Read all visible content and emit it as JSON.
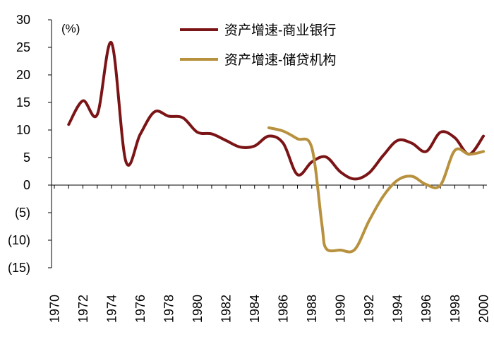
{
  "chart_data": {
    "type": "line",
    "title": "",
    "xlabel": "",
    "ylabel": "",
    "unit_label": "(%)",
    "xlim": [
      1970,
      2000
    ],
    "ylim": [
      -15,
      30
    ],
    "x_ticks": [
      1970,
      1972,
      1974,
      1976,
      1978,
      1980,
      1982,
      1984,
      1986,
      1988,
      1990,
      1992,
      1994,
      1996,
      1998,
      2000
    ],
    "x_tick_labels": [
      "1970",
      "1972",
      "1974",
      "1976",
      "1978",
      "1980",
      "1982",
      "1984",
      "1986",
      "1988",
      "1990",
      "1992",
      "1994",
      "1996",
      "1998",
      "2000"
    ],
    "y_ticks": [
      30,
      25,
      20,
      15,
      10,
      5,
      0,
      -5,
      -10,
      -15
    ],
    "y_tick_labels": [
      "30",
      "25",
      "20",
      "15",
      "10",
      "5",
      "0",
      "(5)",
      "(10)",
      "(15)"
    ],
    "legend_position": "top-right",
    "series": [
      {
        "name": "资产增速-商业银行",
        "color": "#7b1416",
        "x": [
          1971,
          1972,
          1973,
          1974,
          1975,
          1976,
          1977,
          1978,
          1979,
          1980,
          1981,
          1982,
          1983,
          1984,
          1985,
          1986,
          1987,
          1988,
          1989,
          1990,
          1991,
          1992,
          1993,
          1994,
          1995,
          1996,
          1997,
          1998,
          1999,
          2000
        ],
        "values": [
          11,
          15.3,
          12.8,
          25.8,
          4.3,
          9.2,
          13.3,
          12.5,
          12.2,
          9.6,
          9.3,
          8.1,
          6.9,
          7.1,
          8.9,
          7.6,
          1.9,
          4.2,
          5.1,
          2.4,
          1.1,
          2.2,
          5.4,
          8.1,
          7.6,
          6.1,
          9.6,
          8.6,
          5.6,
          8.9
        ]
      },
      {
        "name": "资产增速-储贷机构",
        "color": "#b8913e",
        "x": [
          1985,
          1986,
          1987,
          1988,
          1988.7,
          1989,
          1990,
          1991,
          1992,
          1993,
          1994,
          1995,
          1996,
          1997,
          1998,
          1999,
          2000
        ],
        "values": [
          10.4,
          9.8,
          8.4,
          6.8,
          -7,
          -11.5,
          -11.8,
          -11.7,
          -6.5,
          -2,
          0.9,
          1.6,
          0.1,
          0,
          6.3,
          5.6,
          6.1
        ]
      }
    ]
  }
}
